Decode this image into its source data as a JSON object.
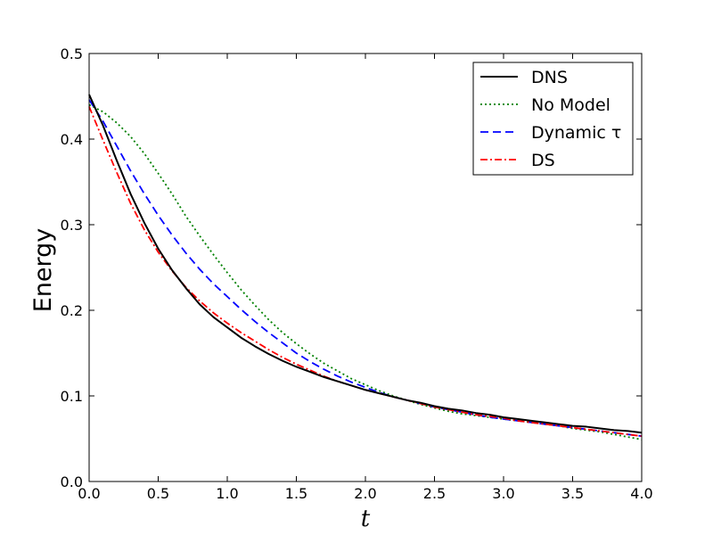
{
  "chart_data": {
    "type": "line",
    "xlabel": "t",
    "ylabel": "Energy",
    "xlim": [
      0.0,
      4.0
    ],
    "ylim": [
      0.0,
      0.5
    ],
    "x_ticks": [
      "0.0",
      "0.5",
      "1.0",
      "1.5",
      "2.0",
      "2.5",
      "3.0",
      "3.5",
      "4.0"
    ],
    "y_ticks": [
      "0.0",
      "0.1",
      "0.2",
      "0.3",
      "0.4",
      "0.5"
    ],
    "legend_position": "top-right",
    "grid": false,
    "series": [
      {
        "name": "DNS",
        "color": "#000000",
        "style": "solid",
        "x": [
          0.0,
          0.1,
          0.2,
          0.3,
          0.4,
          0.5,
          0.6,
          0.7,
          0.8,
          0.9,
          1.0,
          1.1,
          1.2,
          1.3,
          1.4,
          1.5,
          1.6,
          1.7,
          1.8,
          1.9,
          2.0,
          2.1,
          2.2,
          2.3,
          2.4,
          2.5,
          2.6,
          2.7,
          2.8,
          2.9,
          3.0,
          3.1,
          3.2,
          3.3,
          3.4,
          3.5,
          3.6,
          3.7,
          3.8,
          3.9,
          4.0
        ],
        "y": [
          0.452,
          0.416,
          0.375,
          0.336,
          0.302,
          0.272,
          0.247,
          0.226,
          0.207,
          0.192,
          0.18,
          0.168,
          0.158,
          0.149,
          0.141,
          0.134,
          0.128,
          0.122,
          0.117,
          0.112,
          0.107,
          0.103,
          0.099,
          0.095,
          0.092,
          0.088,
          0.085,
          0.083,
          0.08,
          0.078,
          0.075,
          0.073,
          0.071,
          0.069,
          0.067,
          0.065,
          0.064,
          0.062,
          0.06,
          0.059,
          0.057
        ]
      },
      {
        "name": "No Model",
        "color": "#008000",
        "style": "dotted",
        "x": [
          0.0,
          0.1,
          0.2,
          0.3,
          0.4,
          0.5,
          0.6,
          0.7,
          0.8,
          0.9,
          1.0,
          1.1,
          1.2,
          1.3,
          1.4,
          1.5,
          1.6,
          1.7,
          1.8,
          1.9,
          2.0,
          2.1,
          2.2,
          2.3,
          2.4,
          2.5,
          2.6,
          2.7,
          2.8,
          2.9,
          3.0,
          3.1,
          3.2,
          3.3,
          3.4,
          3.5,
          3.6,
          3.7,
          3.8,
          3.9,
          4.0
        ],
        "y": [
          0.44,
          0.432,
          0.419,
          0.403,
          0.383,
          0.36,
          0.336,
          0.31,
          0.287,
          0.265,
          0.244,
          0.224,
          0.206,
          0.189,
          0.174,
          0.161,
          0.149,
          0.138,
          0.129,
          0.12,
          0.113,
          0.106,
          0.1,
          0.095,
          0.09,
          0.086,
          0.082,
          0.079,
          0.077,
          0.075,
          0.073,
          0.071,
          0.069,
          0.067,
          0.065,
          0.062,
          0.06,
          0.058,
          0.055,
          0.052,
          0.049
        ]
      },
      {
        "name": "Dynamic τ",
        "color": "#0000ff",
        "style": "dashed",
        "x": [
          0.0,
          0.1,
          0.2,
          0.3,
          0.4,
          0.5,
          0.6,
          0.7,
          0.8,
          0.9,
          1.0,
          1.1,
          1.2,
          1.3,
          1.4,
          1.5,
          1.6,
          1.7,
          1.8,
          1.9,
          2.0,
          2.1,
          2.2,
          2.3,
          2.4,
          2.5,
          2.6,
          2.7,
          2.8,
          2.9,
          3.0,
          3.1,
          3.2,
          3.3,
          3.4,
          3.5,
          3.6,
          3.7,
          3.8,
          3.9,
          4.0
        ],
        "y": [
          0.446,
          0.421,
          0.392,
          0.363,
          0.336,
          0.311,
          0.288,
          0.267,
          0.248,
          0.231,
          0.216,
          0.201,
          0.187,
          0.174,
          0.162,
          0.15,
          0.14,
          0.131,
          0.123,
          0.116,
          0.11,
          0.104,
          0.099,
          0.095,
          0.091,
          0.087,
          0.084,
          0.081,
          0.078,
          0.075,
          0.073,
          0.071,
          0.069,
          0.067,
          0.065,
          0.063,
          0.061,
          0.059,
          0.057,
          0.055,
          0.053
        ]
      },
      {
        "name": "DS",
        "color": "#ff0000",
        "style": "dashdot",
        "x": [
          0.0,
          0.1,
          0.2,
          0.3,
          0.4,
          0.5,
          0.6,
          0.7,
          0.8,
          0.9,
          1.0,
          1.1,
          1.2,
          1.3,
          1.4,
          1.5,
          1.6,
          1.7,
          1.8,
          1.9,
          2.0,
          2.1,
          2.2,
          2.3,
          2.4,
          2.5,
          2.6,
          2.7,
          2.8,
          2.9,
          3.0,
          3.1,
          3.2,
          3.3,
          3.4,
          3.5,
          3.6,
          3.7,
          3.8,
          3.9,
          4.0
        ],
        "y": [
          0.438,
          0.399,
          0.361,
          0.325,
          0.294,
          0.268,
          0.246,
          0.227,
          0.211,
          0.197,
          0.185,
          0.174,
          0.164,
          0.154,
          0.145,
          0.137,
          0.13,
          0.123,
          0.117,
          0.112,
          0.107,
          0.103,
          0.099,
          0.095,
          0.091,
          0.087,
          0.084,
          0.081,
          0.078,
          0.076,
          0.074,
          0.071,
          0.069,
          0.067,
          0.065,
          0.063,
          0.061,
          0.059,
          0.057,
          0.055,
          0.053
        ]
      }
    ]
  }
}
